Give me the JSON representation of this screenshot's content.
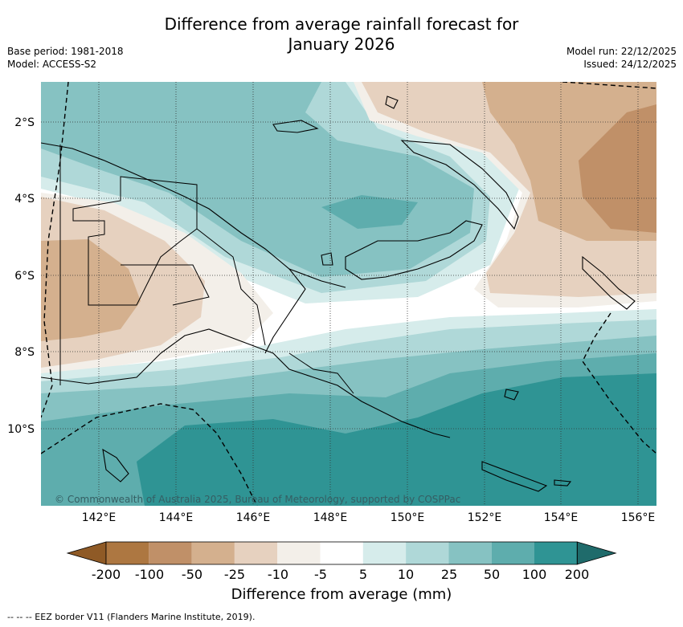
{
  "title_line1": "Difference from average rainfall forecast for",
  "title_line2": "January 2026",
  "meta": {
    "base_period": "Base period: 1981-2018",
    "model": "Model: ACCESS-S2",
    "model_run": "Model run: 22/12/2025",
    "issued": "Issued: 24/12/2025"
  },
  "axes": {
    "lat_labels": [
      "2°S",
      "4°S",
      "6°S",
      "8°S",
      "10°S"
    ],
    "lon_labels": [
      "142°E",
      "144°E",
      "146°E",
      "148°E",
      "150°E",
      "152°E",
      "154°E",
      "156°E"
    ]
  },
  "copyright": "© Commonwealth of Australia 2025, Bureau of Meteorology, supported by COSPPac",
  "colorbar": {
    "title": "Difference from average (mm)",
    "labels": [
      "-200",
      "-100",
      "-50",
      "-25",
      "-10",
      "-5",
      "5",
      "10",
      "25",
      "50",
      "100",
      "200"
    ],
    "colors": [
      "#8f5a26",
      "#ad7741",
      "#c09068",
      "#d4b08e",
      "#e6d1bf",
      "#f3efe9",
      "#ffffff",
      "#d6eceb",
      "#afd8d8",
      "#86c2c2",
      "#5eadad",
      "#2f9494",
      "#1f6b6b"
    ]
  },
  "footnote": "--  --  -- EEZ border V11 (Flanders Marine Institute, 2019)."
}
